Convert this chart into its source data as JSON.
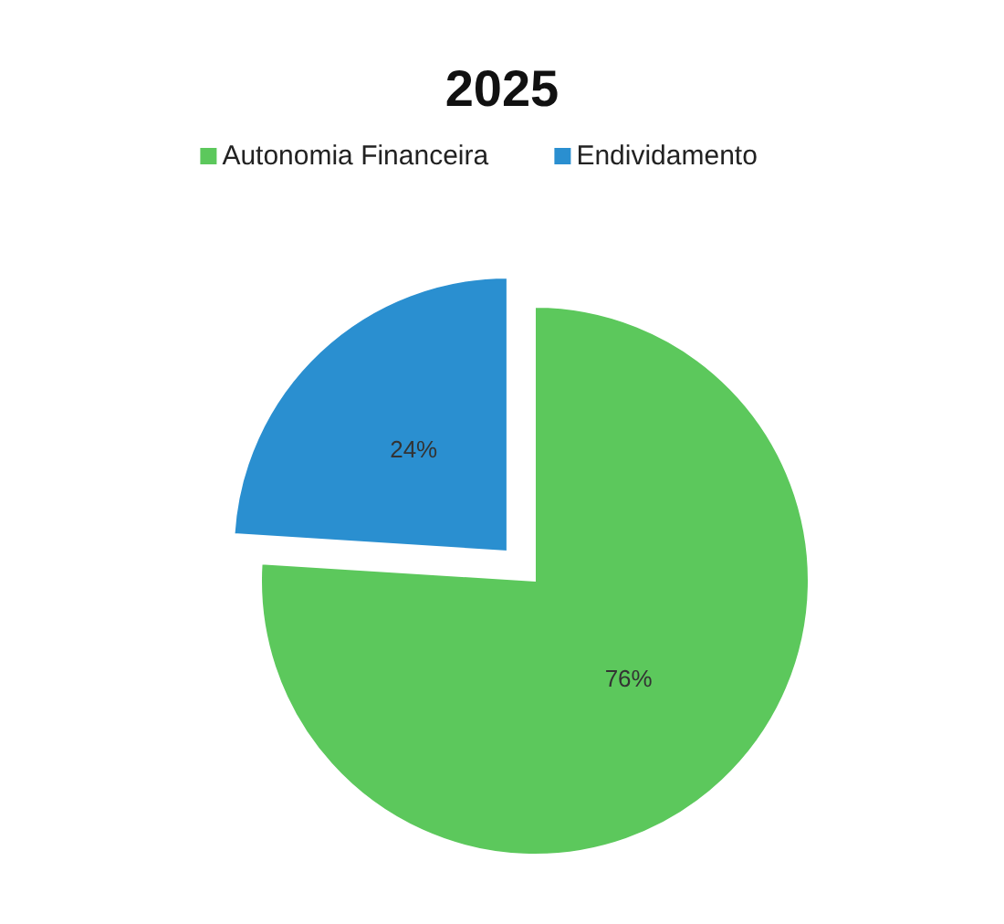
{
  "chart_data": {
    "type": "pie",
    "title": "2025",
    "categories": [
      "Autonomia Financeira",
      "Endividamento"
    ],
    "values": [
      76,
      24
    ],
    "colors": [
      "#5cc85c",
      "#2a8fd0"
    ],
    "value_labels": [
      "76%",
      "24%"
    ],
    "legend": "top"
  }
}
